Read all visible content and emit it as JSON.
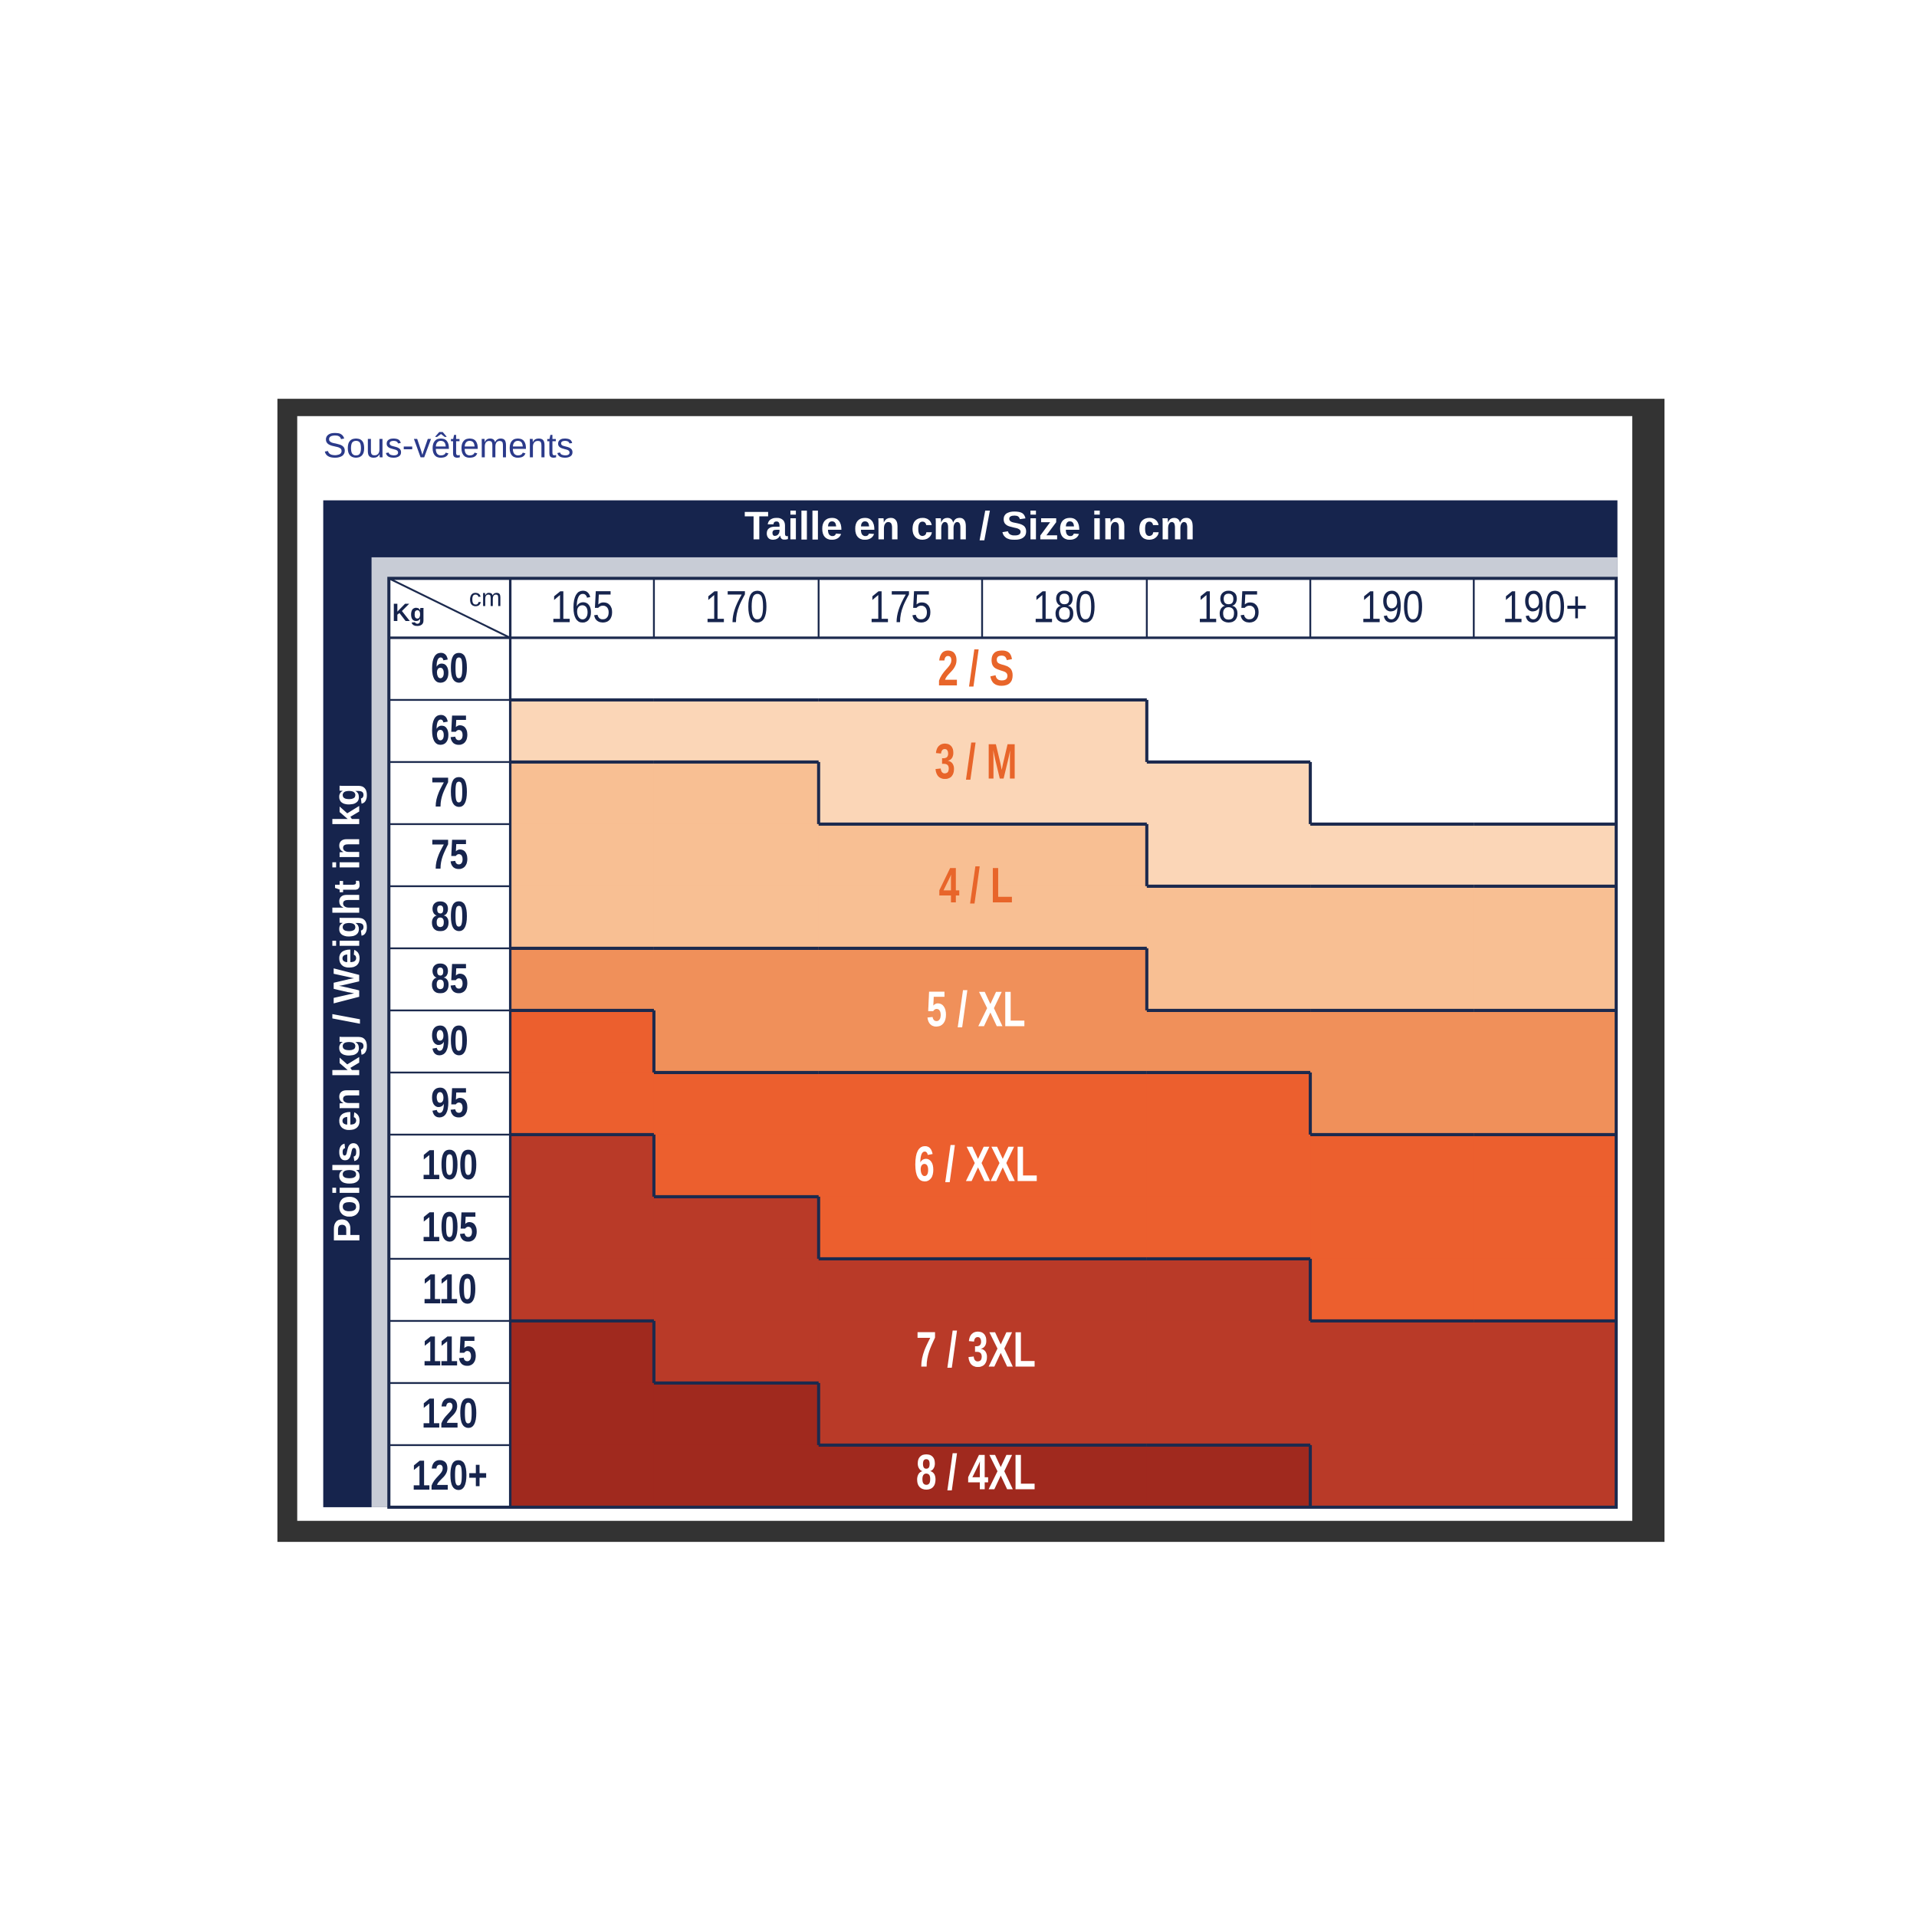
{
  "title": "Sous-vêtements",
  "header": "Taille en cm / Size in cm",
  "side_label": "Poids en kg / Weight in kg",
  "corner": {
    "row_unit": "Kg",
    "column_unit": "cm"
  },
  "columns": [
    "165",
    "170",
    "175",
    "180",
    "185",
    "190",
    "190+"
  ],
  "sizes": [
    {
      "label": "2 / S",
      "color": "#ffffff",
      "text_color": "#e8652a"
    },
    {
      "label": "3 / M",
      "color": "#fbd6b7",
      "text_color": "#e8652a"
    },
    {
      "label": "4 / L",
      "color": "#f8bf93",
      "text_color": "#e8652a"
    },
    {
      "label": "5 / XL",
      "color": "#f0905a",
      "text_color": "#ffffff"
    },
    {
      "label": "6 / XXL",
      "color": "#ec5f2e",
      "text_color": "#ffffff"
    },
    {
      "label": "7 / 3XL",
      "color": "#b93a28",
      "text_color": "#ffffff"
    },
    {
      "label": "8 / 4XL",
      "color": "#a0291e",
      "text_color": "#ffffff"
    }
  ],
  "rows": [
    {
      "weight": "60",
      "cells": [
        "2 / S",
        "2 / S",
        "2 / S",
        "2 / S",
        "2 / S",
        "2 / S",
        "2 / S"
      ]
    },
    {
      "weight": "65",
      "cells": [
        "3 / M",
        "3 / M",
        "3 / M",
        "3 / M",
        "2 / S",
        "2 / S",
        "2 / S"
      ]
    },
    {
      "weight": "70",
      "cells": [
        "4 / L",
        "4 / L",
        "3 / M",
        "3 / M",
        "3 / M",
        "2 / S",
        "2 / S"
      ]
    },
    {
      "weight": "75",
      "cells": [
        "4 / L",
        "4 / L",
        "4 / L",
        "4 / L",
        "3 / M",
        "3 / M",
        "3 / M"
      ]
    },
    {
      "weight": "80",
      "cells": [
        "4 / L",
        "4 / L",
        "4 / L",
        "4 / L",
        "4 / L",
        "4 / L",
        "4 / L"
      ]
    },
    {
      "weight": "85",
      "cells": [
        "5 / XL",
        "5 / XL",
        "5 / XL",
        "5 / XL",
        "4 / L",
        "4 / L",
        "4 / L"
      ]
    },
    {
      "weight": "90",
      "cells": [
        "6 / XXL",
        "5 / XL",
        "5 / XL",
        "5 / XL",
        "5 / XL",
        "5 / XL",
        "5 / XL"
      ]
    },
    {
      "weight": "95",
      "cells": [
        "6 / XXL",
        "6 / XXL",
        "6 / XXL",
        "6 / XXL",
        "6 / XXL",
        "5 / XL",
        "5 / XL"
      ]
    },
    {
      "weight": "100",
      "cells": [
        "7 / 3XL",
        "6 / XXL",
        "6 / XXL",
        "6 / XXL",
        "6 / XXL",
        "6 / XXL",
        "6 / XXL"
      ]
    },
    {
      "weight": "105",
      "cells": [
        "7 / 3XL",
        "7 / 3XL",
        "6 / XXL",
        "6 / XXL",
        "6 / XXL",
        "6 / XXL",
        "6 / XXL"
      ]
    },
    {
      "weight": "110",
      "cells": [
        "7 / 3XL",
        "7 / 3XL",
        "7 / 3XL",
        "7 / 3XL",
        "7 / 3XL",
        "6 / XXL",
        "6 / XXL"
      ]
    },
    {
      "weight": "115",
      "cells": [
        "8 / 4XL",
        "7 / 3XL",
        "7 / 3XL",
        "7 / 3XL",
        "7 / 3XL",
        "7 / 3XL",
        "7 / 3XL"
      ]
    },
    {
      "weight": "120",
      "cells": [
        "8 / 4XL",
        "8 / 4XL",
        "7 / 3XL",
        "7 / 3XL",
        "7 / 3XL",
        "7 / 3XL",
        "7 / 3XL"
      ]
    },
    {
      "weight": "120+",
      "cells": [
        "8 / 4XL",
        "8 / 4XL",
        "8 / 4XL",
        "8 / 4XL",
        "8 / 4XL",
        "7 / 3XL",
        "7 / 3XL"
      ]
    }
  ]
}
